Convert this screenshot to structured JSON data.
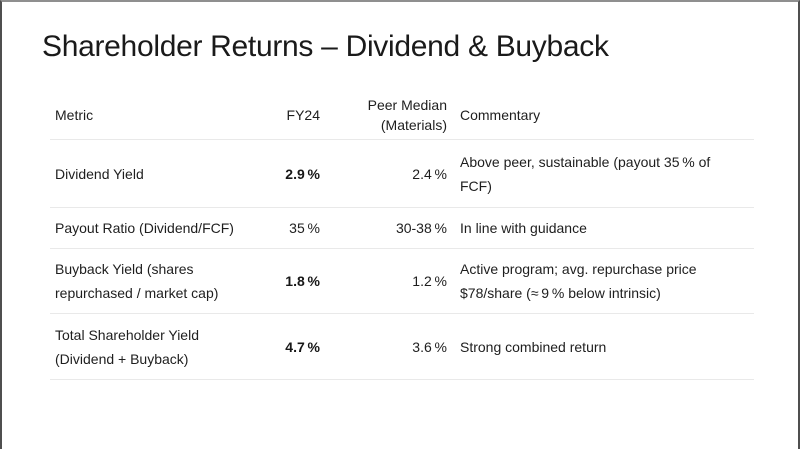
{
  "slide": {
    "title": "Shareholder Returns – Dividend & Buyback"
  },
  "table": {
    "headers": {
      "metric": "Metric",
      "fy24": "FY24",
      "peer": "Peer Median\n(Materials)",
      "commentary": "Commentary"
    },
    "rows": [
      {
        "metric": "Dividend Yield",
        "fy24": "2.9 %",
        "peer": "2.4 %",
        "commentary": "Above peer, sustainable (payout 35 % of FCF)"
      },
      {
        "metric": "Payout Ratio (Dividend/FCF)",
        "fy24": "35 %",
        "peer": "30-38 %",
        "commentary": "In line with guidance"
      },
      {
        "metric": "Buyback Yield (shares repurchased / market cap)",
        "fy24": "1.8 %",
        "peer": "1.2 %",
        "commentary": "Active program; avg. repurchase price $78/share (≈ 9 % below intrinsic)"
      },
      {
        "metric": "Total Shareholder Yield (Dividend + Buyback)",
        "fy24": "4.7 %",
        "peer": "3.6 %",
        "commentary": "Strong combined return"
      }
    ]
  }
}
